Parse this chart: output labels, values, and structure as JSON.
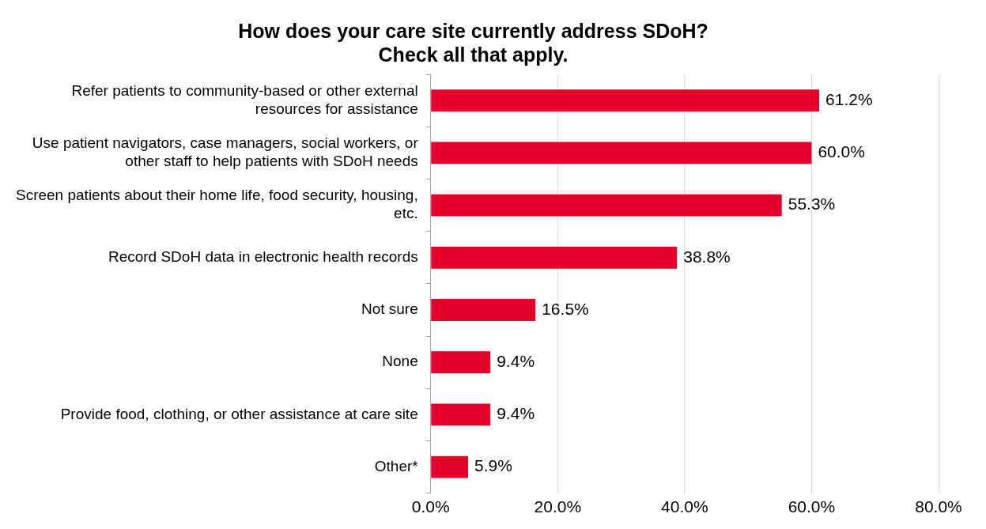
{
  "chart_data": {
    "type": "bar",
    "orientation": "horizontal",
    "title": "How does your care site currently address SDoH?\nCheck all that apply.",
    "categories": [
      "Refer patients to community-based or other external resources for assistance",
      "Use patient navigators, case managers, social workers, or other staff to help patients with SDoH needs",
      "Screen patients about their home life, food security, housing, etc.",
      "Record SDoH data in electronic health records",
      "Not sure",
      "None",
      "Provide food, clothing, or other assistance at care site",
      "Other*"
    ],
    "values": [
      61.2,
      60.0,
      55.3,
      38.8,
      16.5,
      9.4,
      9.4,
      5.9
    ],
    "value_labels": [
      "61.2%",
      "60.0%",
      "55.3%",
      "38.8%",
      "16.5%",
      "9.4%",
      "9.4%",
      "5.9%"
    ],
    "color": "#e4002b",
    "xlim": [
      0,
      80
    ],
    "xticks": [
      {
        "value": 0,
        "label": "0.0%"
      },
      {
        "value": 20,
        "label": "20.0%"
      },
      {
        "value": 40,
        "label": "40.0%"
      },
      {
        "value": 60,
        "label": "60.0%"
      },
      {
        "value": 80,
        "label": "80.0%"
      }
    ],
    "grid": "x",
    "legend": false
  }
}
